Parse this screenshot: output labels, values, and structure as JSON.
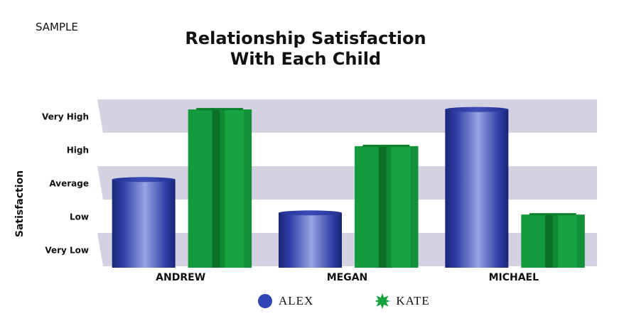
{
  "watermark": "SAMPLE",
  "chart_data": {
    "type": "bar",
    "title_lines": [
      "Relationship Satisfaction",
      "With Each Child"
    ],
    "ylabel": "Satisfaction",
    "xlabel": "",
    "categories": [
      "ANDREW",
      "MEGAN",
      "MICHAEL"
    ],
    "y_tick_labels": [
      "Very Low",
      "Low",
      "Average",
      "High",
      "Very High"
    ],
    "ylim": [
      0,
      5
    ],
    "series": [
      {
        "name": "ALEX",
        "values": [
          2.6,
          1.6,
          4.7
        ],
        "color": "#2e3fa3",
        "shape": "cylinder",
        "legend_icon": "circle-icon"
      },
      {
        "name": "KATE",
        "values": [
          4.7,
          3.6,
          1.55
        ],
        "color": "#14993c",
        "shape": "star-prism",
        "legend_icon": "star-icon"
      }
    ],
    "grid": "alternating bands",
    "band_color": "#d3d2e2",
    "legend_position": "bottom-center"
  }
}
